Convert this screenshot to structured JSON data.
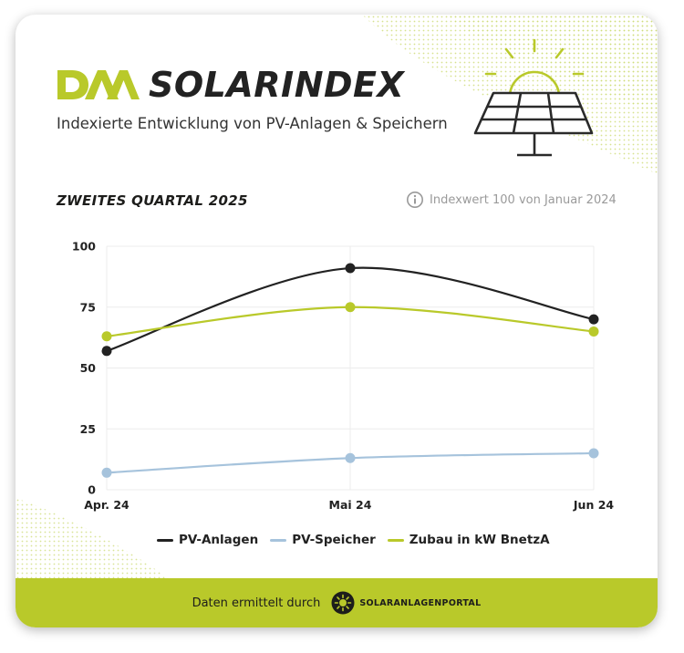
{
  "header": {
    "logo_text": "DAA",
    "brand": "SOLARINDEX",
    "subtitle": "Indexierte Entwicklung von PV-Anlagen & Speichern",
    "quarter": "ZWEITES QUARTAL 2025",
    "index_note": "Indexwert 100 von Januar 2024"
  },
  "colors": {
    "accent": "#b9c92a",
    "pv_anlagen": "#222222",
    "pv_speicher": "#a6c3dc",
    "zubau": "#b9c92a",
    "card_bg": "#ffffff"
  },
  "chart_data": {
    "type": "line",
    "categories": [
      "Apr. 24",
      "Mai 24",
      "Jun 24"
    ],
    "series": [
      {
        "name": "PV-Anlagen",
        "values": [
          57,
          91,
          70
        ],
        "color": "#222222"
      },
      {
        "name": "PV-Speicher",
        "values": [
          7,
          13,
          15
        ],
        "color": "#a6c3dc"
      },
      {
        "name": "Zubau in kW BnetzA",
        "values": [
          63,
          75,
          65
        ],
        "color": "#b9c92a"
      }
    ],
    "title": "",
    "xlabel": "",
    "ylabel": "",
    "ylim": [
      0,
      100
    ],
    "yticks": [
      0,
      25,
      50,
      75,
      100
    ],
    "grid": true,
    "legend_position": "bottom"
  },
  "footer": {
    "text": "Daten ermittelt durch",
    "portal_name": "SOLARANLAGENPORTAL"
  },
  "icons": {
    "info": "info-icon",
    "solar_panel": "solar-panel-icon",
    "sun": "sun-icon",
    "portal_logo": "portal-sun-logo-icon"
  }
}
